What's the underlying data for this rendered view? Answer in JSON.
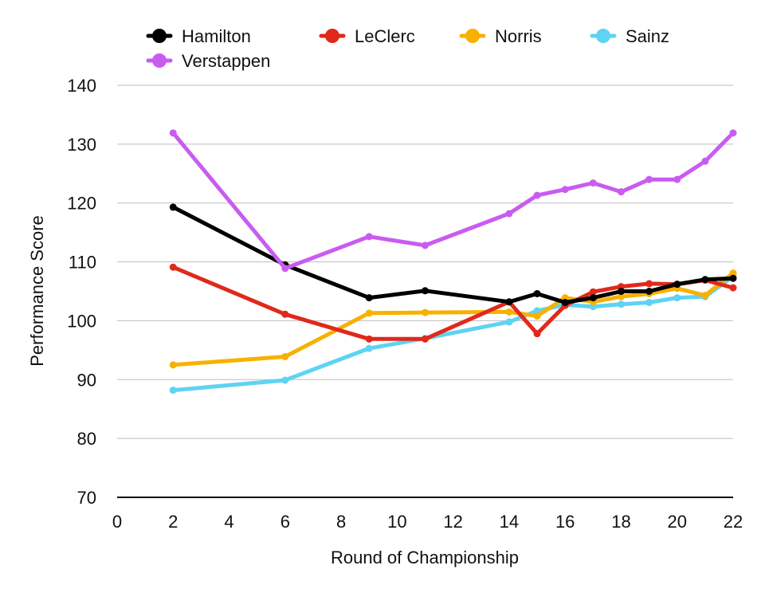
{
  "chart_data": {
    "type": "line",
    "title": "",
    "xlabel": "Round of Championship",
    "ylabel": "Performance Score",
    "xlim": [
      0,
      22
    ],
    "ylim": [
      70,
      140
    ],
    "xticks": [
      0,
      2,
      4,
      6,
      8,
      10,
      12,
      14,
      16,
      18,
      20,
      22
    ],
    "yticks": [
      70,
      80,
      90,
      100,
      110,
      120,
      130,
      140
    ],
    "grid": true,
    "legend_position": "top",
    "series": [
      {
        "name": "Sainz",
        "color": "#5ed3f3",
        "x": [
          2,
          6,
          9,
          11,
          14,
          15,
          16,
          17,
          18,
          19,
          20,
          21,
          22
        ],
        "y": [
          88.2,
          89.9,
          95.3,
          97.0,
          99.8,
          101.7,
          102.7,
          102.4,
          102.8,
          103.1,
          103.9,
          104.1,
          107.5
        ]
      },
      {
        "name": "Norris",
        "color": "#f7b100",
        "x": [
          2,
          6,
          9,
          11,
          14,
          15,
          16,
          17,
          18,
          19,
          20,
          21,
          22
        ],
        "y": [
          92.5,
          93.9,
          101.3,
          101.4,
          101.5,
          100.8,
          103.9,
          103.2,
          104.1,
          104.6,
          105.5,
          104.3,
          108.1
        ]
      },
      {
        "name": "LeClerc",
        "color": "#e0291b",
        "x": [
          2,
          6,
          9,
          11,
          14,
          15,
          16,
          17,
          18,
          19,
          20,
          21,
          22
        ],
        "y": [
          109.1,
          101.1,
          96.9,
          96.9,
          103.2,
          97.8,
          102.6,
          104.9,
          105.8,
          106.3,
          106.2,
          106.9,
          105.6
        ]
      },
      {
        "name": "Hamilton",
        "color": "#000000",
        "x": [
          2,
          6,
          9,
          11,
          14,
          15,
          16,
          17,
          18,
          19,
          20,
          21,
          22
        ],
        "y": [
          119.3,
          109.5,
          103.9,
          105.1,
          103.2,
          104.6,
          103.1,
          103.9,
          105.0,
          105.0,
          106.2,
          107.0,
          107.2
        ]
      },
      {
        "name": "Verstappen",
        "color": "#c95cf0",
        "x": [
          2,
          6,
          9,
          11,
          14,
          15,
          16,
          17,
          18,
          19,
          20,
          21,
          22
        ],
        "y": [
          131.9,
          108.9,
          114.3,
          112.8,
          118.2,
          121.3,
          122.3,
          123.4,
          121.9,
          124.0,
          124.0,
          127.1,
          131.9
        ]
      }
    ],
    "legend": [
      {
        "name": "Hamilton",
        "color": "#000000"
      },
      {
        "name": "LeClerc",
        "color": "#e0291b"
      },
      {
        "name": "Norris",
        "color": "#f7b100"
      },
      {
        "name": "Sainz",
        "color": "#5ed3f3"
      },
      {
        "name": "Verstappen",
        "color": "#c95cf0"
      }
    ]
  }
}
